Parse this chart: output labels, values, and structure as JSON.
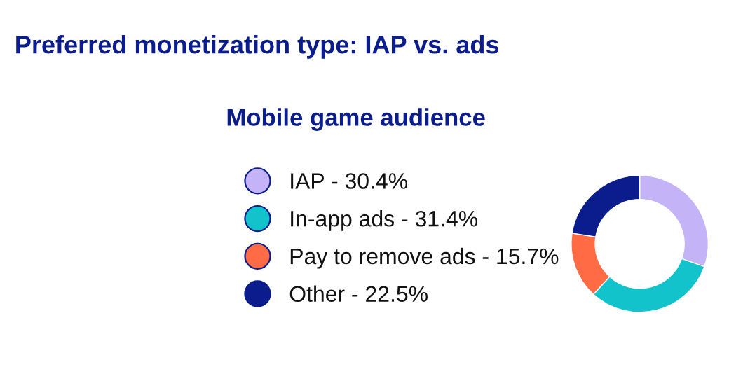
{
  "chart_data": {
    "type": "donut",
    "title": "Preferred monetization type: IAP vs. ads",
    "subtitle": "Mobile game audience",
    "categories": [
      "IAP - 30.4%",
      "In-app ads - 31.4%",
      "Pay to remove ads - 15.7%",
      "Other - 22.5%"
    ],
    "values": [
      30.4,
      31.4,
      15.7,
      22.5
    ],
    "colors": [
      "#c4b3f7",
      "#12c3cc",
      "#ff6b45",
      "#0b1c8c"
    ],
    "legend": "left"
  }
}
